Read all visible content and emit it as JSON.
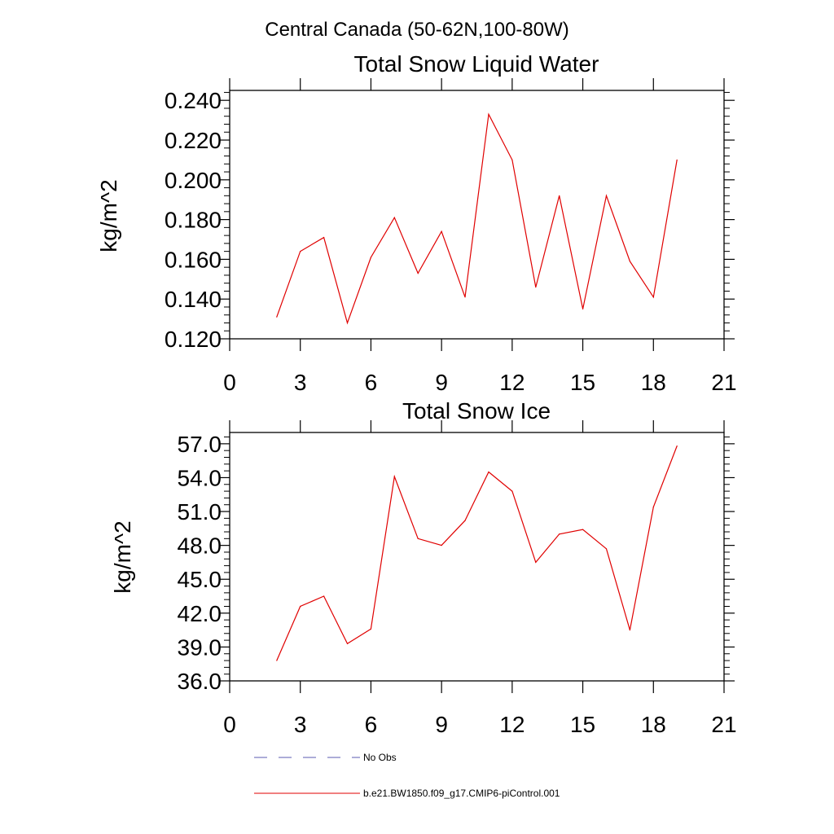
{
  "page_title": "Central Canada (50-62N,100-80W)",
  "legend": {
    "entries": [
      {
        "label": "No Obs",
        "color": "#5b5bb0",
        "style": "dashed"
      },
      {
        "label": "b.e21.BW1850.f09_g17.CMIP6-piControl.001",
        "color": "#e00000",
        "style": "solid"
      }
    ]
  },
  "chart_data": [
    {
      "type": "line",
      "title": "Total Snow Liquid Water",
      "xlabel": "",
      "ylabel": "kg/m^2",
      "xlim": [
        0,
        21
      ],
      "ylim": [
        0.12,
        0.245
      ],
      "xticks": [
        0,
        3,
        6,
        9,
        12,
        15,
        18,
        21
      ],
      "xtick_labels": [
        "0",
        "3",
        "6",
        "9",
        "12",
        "15",
        "18",
        "21"
      ],
      "yticks": [
        0.12,
        0.14,
        0.16,
        0.18,
        0.2,
        0.22,
        0.24
      ],
      "ytick_labels": [
        "0.120",
        "0.140",
        "0.160",
        "0.180",
        "0.200",
        "0.220",
        "0.240"
      ],
      "series": [
        {
          "name": "b.e21.BW1850.f09_g17.CMIP6-piControl.001",
          "color": "#e00000",
          "x": [
            2,
            3,
            4,
            5,
            6,
            7,
            8,
            9,
            10,
            11,
            12,
            13,
            14,
            15,
            16,
            17,
            18,
            19
          ],
          "y": [
            0.131,
            0.164,
            0.171,
            0.128,
            0.161,
            0.181,
            0.153,
            0.174,
            0.141,
            0.233,
            0.21,
            0.146,
            0.192,
            0.135,
            0.192,
            0.159,
            0.141,
            0.21
          ]
        }
      ]
    },
    {
      "type": "line",
      "title": "Total Snow Ice",
      "xlabel": "",
      "ylabel": "kg/m^2",
      "xlim": [
        0,
        21
      ],
      "ylim": [
        36.0,
        58.0
      ],
      "xticks": [
        0,
        3,
        6,
        9,
        12,
        15,
        18,
        21
      ],
      "xtick_labels": [
        "0",
        "3",
        "6",
        "9",
        "12",
        "15",
        "18",
        "21"
      ],
      "yticks": [
        36,
        39,
        42,
        45,
        48,
        51,
        54,
        57
      ],
      "ytick_labels": [
        "36.0",
        "39.0",
        "42.0",
        "45.0",
        "48.0",
        "51.0",
        "54.0",
        "57.0"
      ],
      "series": [
        {
          "name": "b.e21.BW1850.f09_g17.CMIP6-piControl.001",
          "color": "#e00000",
          "x": [
            2,
            3,
            4,
            5,
            6,
            7,
            8,
            9,
            10,
            11,
            12,
            13,
            14,
            15,
            16,
            17,
            18,
            19
          ],
          "y": [
            37.8,
            42.6,
            43.5,
            39.3,
            40.6,
            54.1,
            48.6,
            48.0,
            50.2,
            54.5,
            52.8,
            46.5,
            49.0,
            49.4,
            47.7,
            40.5,
            51.4,
            56.8
          ]
        }
      ]
    }
  ]
}
